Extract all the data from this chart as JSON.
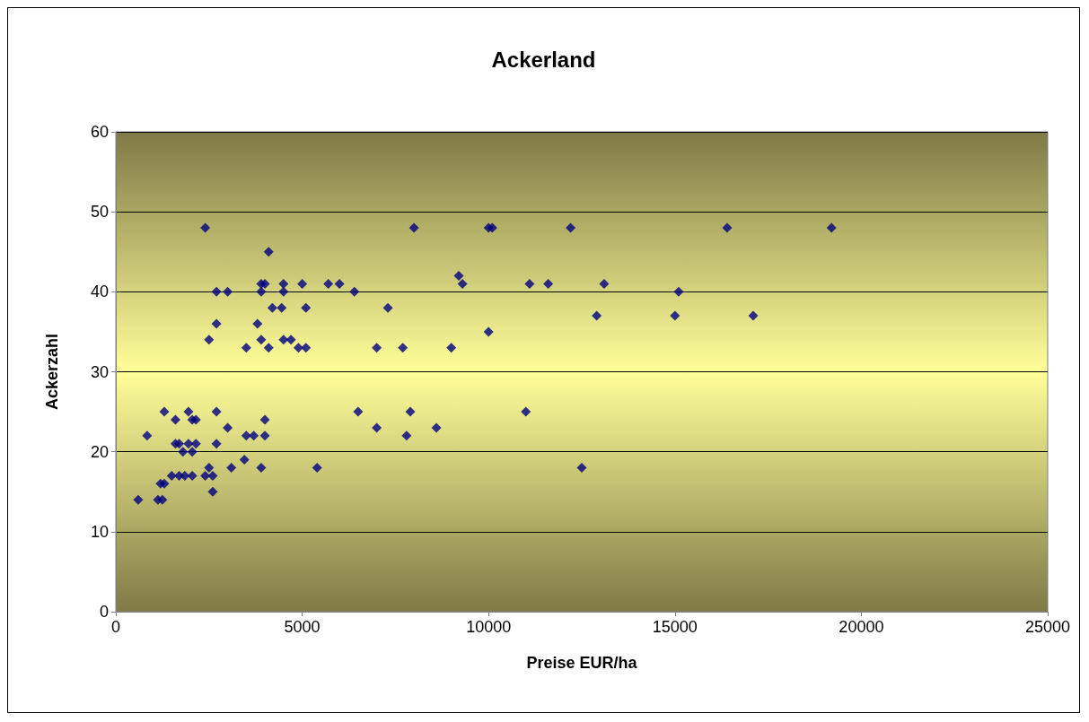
{
  "chart_data": {
    "type": "scatter",
    "title": "Ackerland",
    "xlabel": "Preise EUR/ha",
    "ylabel": "Ackerzahl",
    "marker": "diamond",
    "grid": "y",
    "xlim": [
      0,
      25000
    ],
    "xticks": [
      0,
      5000,
      10000,
      15000,
      20000,
      25000
    ],
    "ylim": [
      0,
      60
    ],
    "yticks": [
      0,
      10,
      20,
      30,
      40,
      50,
      60
    ],
    "series": [
      {
        "color": "#000080",
        "x": [
          2400,
          4100,
          2700,
          3000,
          3900,
          4500,
          6400,
          3900,
          4000,
          4500,
          5000,
          5700,
          6000,
          4200,
          4450,
          5100,
          2700,
          3800,
          2500,
          3900,
          4500,
          4700,
          3500,
          4100,
          4900,
          5100,
          7000,
          1300,
          1950,
          2700,
          6500,
          1600,
          2050,
          2150,
          4000,
          3000,
          7000,
          840,
          3500,
          3700,
          4000,
          1600,
          1700,
          1950,
          2150,
          2700,
          1800,
          2050,
          3450,
          2500,
          3100,
          3900,
          5400,
          2400,
          2600,
          1500,
          1700,
          1850,
          2050,
          1200,
          1300,
          2600,
          600,
          1130,
          1250,
          8000,
          10000,
          10100,
          12200,
          9200,
          9300,
          11100,
          11600,
          13100,
          7300,
          12900,
          10000,
          7700,
          9000,
          7900,
          11000,
          8600,
          7800,
          12500,
          15100,
          15000,
          16400,
          17100,
          19200
        ],
        "values": [
          48,
          45,
          40,
          40,
          40,
          40,
          40,
          41,
          41,
          41,
          41,
          41,
          41,
          38,
          38,
          38,
          36,
          36,
          34,
          34,
          34,
          34,
          33,
          33,
          33,
          33,
          33,
          25,
          25,
          25,
          25,
          24,
          24,
          24,
          24,
          23,
          23,
          22,
          22,
          22,
          22,
          21,
          21,
          21,
          21,
          21,
          20,
          20,
          19,
          18,
          18,
          18,
          18,
          17,
          17,
          17,
          17,
          17,
          17,
          16,
          16,
          15,
          14,
          14,
          14,
          48,
          48,
          48,
          48,
          42,
          41,
          41,
          41,
          41,
          38,
          37,
          35,
          33,
          33,
          25,
          25,
          23,
          22,
          18,
          40,
          37,
          48,
          37,
          48
        ]
      }
    ]
  }
}
